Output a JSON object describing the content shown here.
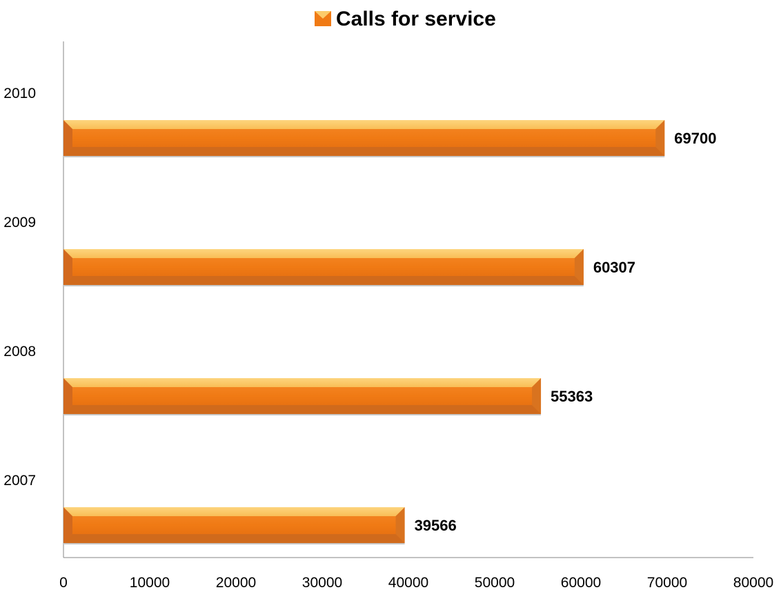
{
  "chart_data": {
    "type": "bar",
    "orientation": "horizontal",
    "categories": [
      "2007",
      "2008",
      "2009",
      "2010"
    ],
    "series": [
      {
        "name": "Calls for service",
        "values": [
          39566,
          55363,
          60307,
          69700
        ],
        "data_labels": [
          "39566",
          "55363",
          "60307",
          "69700"
        ]
      }
    ],
    "x_ticks": [
      "0",
      "10000",
      "20000",
      "30000",
      "40000",
      "50000",
      "60000",
      "70000",
      "80000"
    ],
    "xlim": [
      0,
      80000
    ],
    "legend_position": "top",
    "grid": false,
    "colors": {
      "bar_front": "#F07A14",
      "bar_top": "#FCCB6A",
      "bar_edge": "#D2691E",
      "axis": "#868686"
    }
  }
}
